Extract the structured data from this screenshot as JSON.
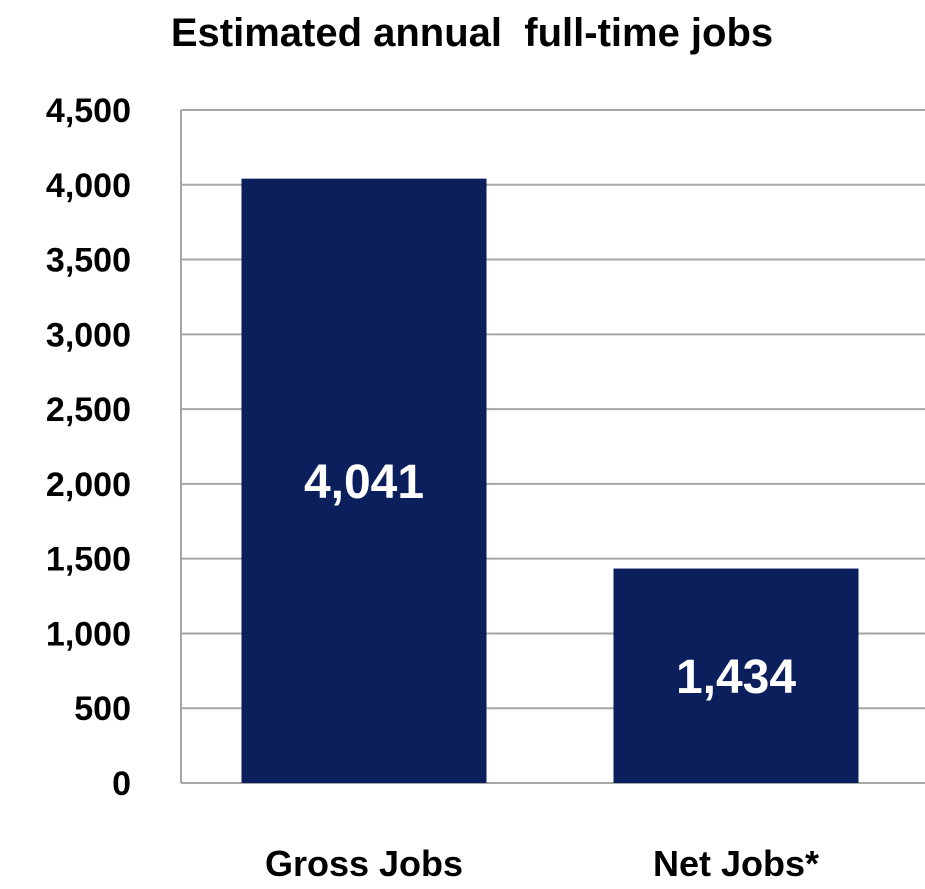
{
  "chart_data": {
    "type": "bar",
    "title": "Estimated annual  full-time jobs",
    "categories": [
      "Gross Jobs",
      "Net Jobs*"
    ],
    "values": [
      4041,
      1434
    ],
    "data_labels": [
      "4,041",
      "1,434"
    ],
    "y_ticks": [
      "0",
      "500",
      "1,000",
      "1,500",
      "2,000",
      "2,500",
      "3,000",
      "3,500",
      "4,000",
      "4,500"
    ],
    "ylim": [
      0,
      4500
    ],
    "xlabel": "",
    "ylabel": "",
    "grid": true,
    "legend": "none",
    "bar_color": "#0b1f5c"
  }
}
